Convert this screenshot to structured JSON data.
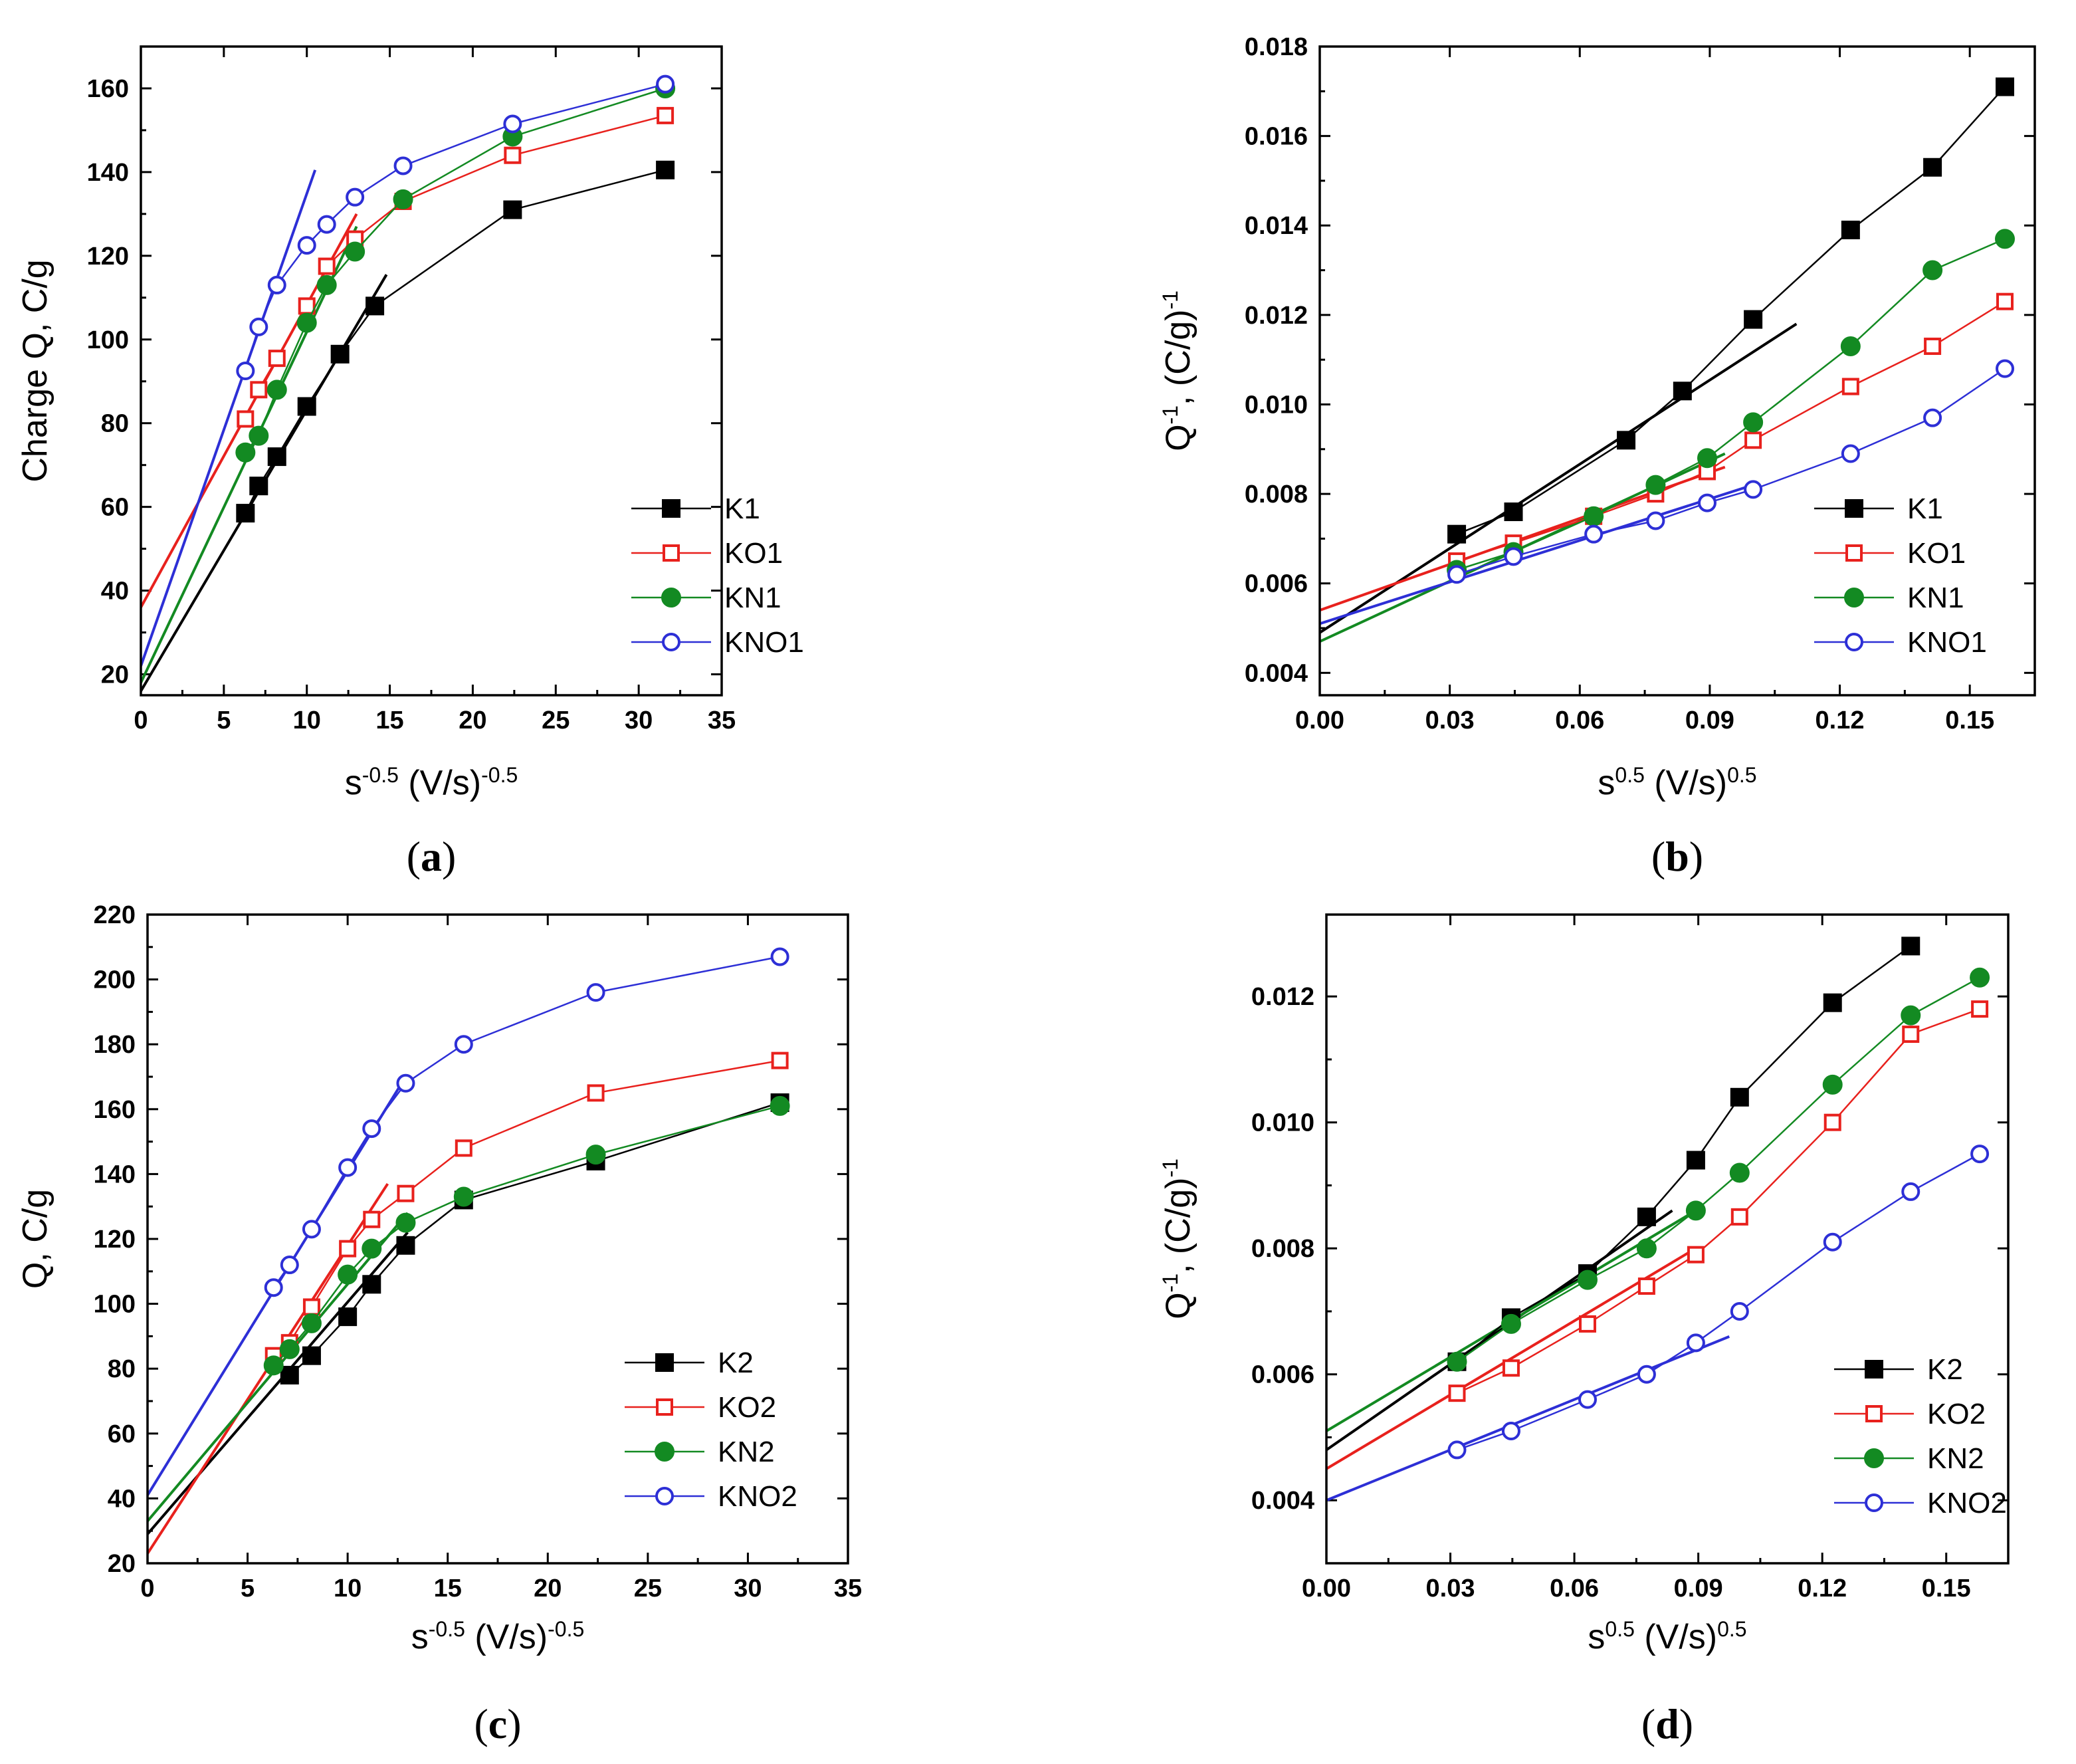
{
  "chart_data": [
    {
      "type": "line",
      "panel_label": "a",
      "ylabel": "Charge Q, C/g",
      "xlabel_base": "s",
      "xlabel_exp": "-0.5",
      "xlabel_unit": " (V/s)",
      "xlabel_unit_exp": "-0.5",
      "xlim": [
        0,
        35
      ],
      "ylim": [
        15,
        170
      ],
      "xticks": [
        0,
        5,
        10,
        15,
        20,
        25,
        30,
        35
      ],
      "yticks": [
        20,
        40,
        60,
        80,
        100,
        120,
        140,
        160
      ],
      "tick_decimals": 0,
      "legend_position": "bottom-right",
      "series": [
        {
          "name": "K1",
          "color": "#000000",
          "marker": "square-filled",
          "x": [
            6.3,
            7.1,
            8.2,
            10.0,
            12.0,
            14.1,
            22.4,
            31.6
          ],
          "y": [
            58.5,
            65,
            72,
            84,
            96.5,
            108,
            131,
            140.5
          ]
        },
        {
          "name": "KO1",
          "color": "#e8211d",
          "marker": "square-open",
          "x": [
            6.3,
            7.1,
            8.2,
            10.0,
            11.2,
            12.9,
            15.8,
            22.4,
            31.6
          ],
          "y": [
            81,
            88,
            95.5,
            108,
            117.5,
            124,
            133,
            144,
            153.5
          ]
        },
        {
          "name": "KN1",
          "color": "#138a22",
          "marker": "circle-filled",
          "x": [
            6.3,
            7.1,
            8.2,
            10.0,
            11.2,
            12.9,
            15.8,
            22.4,
            31.6
          ],
          "y": [
            73,
            77,
            88,
            104,
            113,
            121,
            133.5,
            148.5,
            160
          ]
        },
        {
          "name": "KNO1",
          "color": "#2d2fd6",
          "marker": "circle-open",
          "x": [
            6.3,
            7.1,
            8.2,
            10.0,
            11.2,
            12.9,
            15.8,
            22.4,
            31.6
          ],
          "y": [
            92.5,
            103,
            113,
            122.5,
            127.5,
            134,
            141.5,
            151.5,
            161
          ]
        }
      ],
      "fits": [
        {
          "series": "K1",
          "color": "#000000",
          "x": [
            0,
            14.8
          ],
          "y": [
            16,
            115.5
          ]
        },
        {
          "series": "KO1",
          "color": "#e8211d",
          "x": [
            0,
            13
          ],
          "y": [
            36,
            130
          ]
        },
        {
          "series": "KN1",
          "color": "#138a22",
          "x": [
            0,
            13
          ],
          "y": [
            18,
            127
          ]
        },
        {
          "series": "KNO1",
          "color": "#2d2fd6",
          "x": [
            0,
            10.5
          ],
          "y": [
            22,
            140.5
          ]
        }
      ]
    },
    {
      "type": "line",
      "panel_label": "b",
      "ylabel_base": "Q",
      "ylabel_exp": "-1",
      "ylabel_unit": ", (C/g)",
      "ylabel_unit_exp": "-1",
      "xlabel_base": "s",
      "xlabel_exp": "0.5",
      "xlabel_unit": " (V/s)",
      "xlabel_unit_exp": "0.5",
      "xlim": [
        0,
        0.165
      ],
      "ylim": [
        0.0035,
        0.018
      ],
      "xticks": [
        "0.00",
        "0.03",
        "0.06",
        "0.09",
        "0.12",
        "0.15"
      ],
      "yticks": [
        "0.004",
        "0.006",
        "0.008",
        "0.010",
        "0.012",
        "0.014",
        "0.016",
        "0.018"
      ],
      "legend_position": "bottom-right",
      "series": [
        {
          "name": "K1",
          "color": "#000000",
          "marker": "square-filled",
          "x": [
            0.0316,
            0.0447,
            0.0707,
            0.0837,
            0.1,
            0.1225,
            0.1414,
            0.1581
          ],
          "y": [
            0.0071,
            0.0076,
            0.0092,
            0.0103,
            0.0119,
            0.0139,
            0.0153,
            0.0171
          ]
        },
        {
          "name": "KO1",
          "color": "#e8211d",
          "marker": "square-open",
          "x": [
            0.0316,
            0.0447,
            0.0632,
            0.0775,
            0.0894,
            0.1,
            0.1225,
            0.1414,
            0.1581
          ],
          "y": [
            0.0065,
            0.0069,
            0.0075,
            0.008,
            0.0085,
            0.0092,
            0.0104,
            0.0113,
            0.0123
          ]
        },
        {
          "name": "KN1",
          "color": "#138a22",
          "marker": "circle-filled",
          "x": [
            0.0316,
            0.0447,
            0.0632,
            0.0775,
            0.0894,
            0.1,
            0.1225,
            0.1414,
            0.1581
          ],
          "y": [
            0.0063,
            0.0067,
            0.0075,
            0.0082,
            0.0088,
            0.0096,
            0.0113,
            0.013,
            0.0137
          ]
        },
        {
          "name": "KNO1",
          "color": "#2d2fd6",
          "marker": "circle-open",
          "x": [
            0.0316,
            0.0447,
            0.0632,
            0.0775,
            0.0894,
            0.1,
            0.1225,
            0.1414,
            0.1581
          ],
          "y": [
            0.0062,
            0.0066,
            0.0071,
            0.0074,
            0.0078,
            0.0081,
            0.0089,
            0.0097,
            0.0108
          ]
        }
      ],
      "fits": [
        {
          "series": "K1",
          "color": "#000000",
          "x": [
            0,
            0.11
          ],
          "y": [
            0.0049,
            0.0118
          ]
        },
        {
          "series": "KO1",
          "color": "#e8211d",
          "x": [
            0,
            0.0935
          ],
          "y": [
            0.0054,
            0.0086
          ]
        },
        {
          "series": "KN1",
          "color": "#138a22",
          "x": [
            0,
            0.0935
          ],
          "y": [
            0.0047,
            0.0089
          ]
        },
        {
          "series": "KNO1",
          "color": "#2d2fd6",
          "x": [
            0,
            0.1
          ],
          "y": [
            0.0051,
            0.0082
          ]
        }
      ]
    },
    {
      "type": "line",
      "panel_label": "c",
      "ylabel": "Q, C/g",
      "xlabel_base": "s",
      "xlabel_exp": "-0.5",
      "xlabel_unit": " (V/s)",
      "xlabel_unit_exp": "-0.5",
      "xlim": [
        0,
        35
      ],
      "ylim": [
        20,
        220
      ],
      "xticks": [
        0,
        5,
        10,
        15,
        20,
        25,
        30,
        35
      ],
      "yticks": [
        20,
        40,
        60,
        80,
        100,
        120,
        140,
        160,
        180,
        200,
        220
      ],
      "tick_decimals": 0,
      "legend_position": "bottom-right",
      "series": [
        {
          "name": "K2",
          "color": "#000000",
          "marker": "square-filled",
          "x": [
            7.1,
            8.2,
            10.0,
            11.2,
            12.9,
            15.8,
            22.4,
            31.6
          ],
          "y": [
            78,
            84,
            96,
            106,
            118,
            132,
            144,
            162
          ]
        },
        {
          "name": "KO2",
          "color": "#e8211d",
          "marker": "square-open",
          "x": [
            6.3,
            7.1,
            8.2,
            10.0,
            11.2,
            12.9,
            15.8,
            22.4,
            31.6
          ],
          "y": [
            84,
            88,
            99,
            117,
            126,
            134,
            148,
            165,
            175
          ]
        },
        {
          "name": "KN2",
          "color": "#138a22",
          "marker": "circle-filled",
          "x": [
            6.3,
            7.1,
            8.2,
            10.0,
            11.2,
            12.9,
            15.8,
            22.4,
            31.6
          ],
          "y": [
            81,
            86,
            94,
            109,
            117,
            125,
            133,
            146,
            161
          ]
        },
        {
          "name": "KNO2",
          "color": "#2d2fd6",
          "marker": "circle-open",
          "x": [
            6.3,
            7.1,
            8.2,
            10.0,
            11.2,
            12.9,
            15.8,
            22.4,
            31.6
          ],
          "y": [
            105,
            112,
            123,
            142,
            154,
            168,
            180,
            196,
            207
          ]
        }
      ],
      "fits": [
        {
          "series": "K2",
          "color": "#000000",
          "x": [
            0,
            13
          ],
          "y": [
            29,
            122
          ]
        },
        {
          "series": "KO2",
          "color": "#e8211d",
          "x": [
            0,
            12
          ],
          "y": [
            23,
            137
          ]
        },
        {
          "series": "KN2",
          "color": "#138a22",
          "x": [
            0,
            13
          ],
          "y": [
            33,
            128
          ]
        },
        {
          "series": "KNO2",
          "color": "#2d2fd6",
          "x": [
            0,
            12.7
          ],
          "y": [
            41,
            168
          ]
        }
      ]
    },
    {
      "type": "line",
      "panel_label": "d",
      "ylabel_base": "Q",
      "ylabel_exp": "-1",
      "ylabel_unit": ", (C/g)",
      "ylabel_unit_exp": "-1",
      "xlabel_base": "s",
      "xlabel_exp": "0.5",
      "xlabel_unit": " (V/s)",
      "xlabel_unit_exp": "0.5",
      "xlim": [
        0,
        0.165
      ],
      "ylim": [
        0.003,
        0.0133
      ],
      "xticks": [
        "0.00",
        "0.03",
        "0.06",
        "0.09",
        "0.12",
        "0.15"
      ],
      "yticks": [
        "0.004",
        "0.006",
        "0.008",
        "0.010",
        "0.012"
      ],
      "legend_position": "bottom-right",
      "series": [
        {
          "name": "K2",
          "color": "#000000",
          "marker": "square-filled",
          "x": [
            0.0316,
            0.0447,
            0.0632,
            0.0775,
            0.0894,
            0.1,
            0.1225,
            0.1414
          ],
          "y": [
            0.0062,
            0.0069,
            0.0076,
            0.0085,
            0.0094,
            0.0104,
            0.0119,
            0.0128
          ]
        },
        {
          "name": "KO2",
          "color": "#e8211d",
          "marker": "square-open",
          "x": [
            0.0316,
            0.0447,
            0.0632,
            0.0775,
            0.0894,
            0.1,
            0.1225,
            0.1414,
            0.1581
          ],
          "y": [
            0.0057,
            0.0061,
            0.0068,
            0.0074,
            0.0079,
            0.0085,
            0.01,
            0.0114,
            0.0118
          ]
        },
        {
          "name": "KN2",
          "color": "#138a22",
          "marker": "circle-filled",
          "x": [
            0.0316,
            0.0447,
            0.0632,
            0.0775,
            0.0894,
            0.1,
            0.1225,
            0.1414,
            0.1581
          ],
          "y": [
            0.0062,
            0.0068,
            0.0075,
            0.008,
            0.0086,
            0.0092,
            0.0106,
            0.0117,
            0.0123
          ]
        },
        {
          "name": "KNO2",
          "color": "#2d2fd6",
          "marker": "circle-open",
          "x": [
            0.0316,
            0.0447,
            0.0632,
            0.0775,
            0.0894,
            0.1,
            0.1225,
            0.1414,
            0.1581
          ],
          "y": [
            0.0048,
            0.0051,
            0.0056,
            0.006,
            0.0065,
            0.007,
            0.0081,
            0.0089,
            0.0095
          ]
        }
      ],
      "fits": [
        {
          "series": "K2",
          "color": "#000000",
          "x": [
            0,
            0.0837
          ],
          "y": [
            0.0048,
            0.0086
          ]
        },
        {
          "series": "KO2",
          "color": "#e8211d",
          "x": [
            0,
            0.0894
          ],
          "y": [
            0.0045,
            0.008
          ]
        },
        {
          "series": "KN2",
          "color": "#138a22",
          "x": [
            0,
            0.0894
          ],
          "y": [
            0.0051,
            0.0086
          ]
        },
        {
          "series": "KNO2",
          "color": "#2d2fd6",
          "x": [
            0,
            0.0975
          ],
          "y": [
            0.004,
            0.0066
          ]
        }
      ]
    }
  ]
}
